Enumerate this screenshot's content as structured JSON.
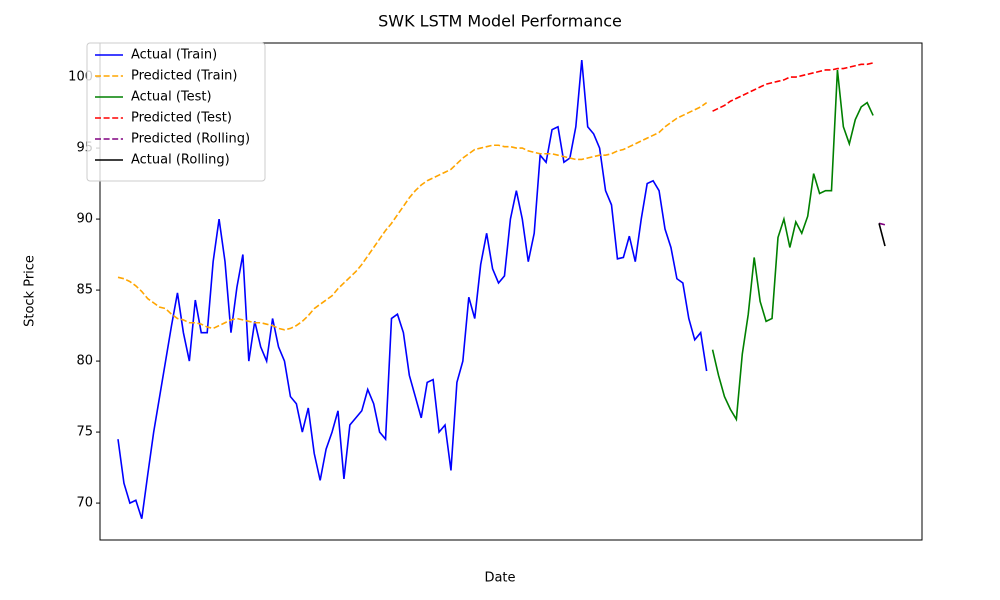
{
  "chart_data": {
    "type": "line",
    "title": "SWK LSTM Model Performance",
    "x_label": "Date",
    "y_label": "Stock Price",
    "ylim": [
      67.4,
      102.4
    ],
    "yticks": [
      70,
      75,
      80,
      85,
      90,
      95,
      100
    ],
    "grid": false,
    "legend": "upper left",
    "series": [
      {
        "name": "Actual (Train)",
        "color": "#0000ff",
        "linestyle": "solid",
        "values": [
          74.5,
          71.4,
          70.0,
          70.2,
          68.9,
          72.0,
          75.0,
          77.5,
          80.0,
          82.5,
          84.8,
          82,
          80,
          84.3,
          82,
          82,
          87,
          90,
          87,
          82,
          85.2,
          87.5,
          80,
          82.8,
          81,
          80,
          83,
          81,
          80,
          77.5,
          77,
          75,
          76.7,
          73.5,
          71.6,
          73.8,
          75,
          76.5,
          71.7,
          75.5,
          76,
          76.5,
          78,
          77,
          75,
          74.5,
          83,
          83.3,
          82,
          79,
          77.5,
          76,
          78.5,
          78.7,
          75,
          75.5,
          72.3,
          78.5,
          80,
          84.5,
          83,
          86.8,
          89,
          86.5,
          85.5,
          86,
          90,
          92,
          90,
          87,
          89,
          94.5,
          94,
          96.3,
          96.5,
          94,
          94.3,
          96.5,
          101.2,
          96.5,
          96,
          95,
          92,
          91,
          87.2,
          87.3,
          88.8,
          87,
          90,
          92.5,
          92.7,
          92,
          89.3,
          88,
          85.8,
          85.5,
          83,
          81.5,
          82,
          79.3,
          null,
          null,
          null,
          null,
          null,
          null,
          null,
          null,
          null,
          null,
          null,
          null,
          null,
          null,
          null,
          null,
          null,
          null,
          null,
          null,
          null,
          null,
          null,
          null,
          null,
          null,
          null,
          null,
          null,
          null
        ]
      },
      {
        "name": "Predicted (Train)",
        "color": "#ffa500",
        "linestyle": "dashed",
        "values": [
          85.9,
          85.8,
          85.6,
          85.3,
          84.9,
          84.4,
          84.1,
          83.8,
          83.7,
          83.3,
          83.0,
          82.9,
          82.7,
          82.7,
          82.6,
          82.4,
          82.3,
          82.5,
          82.7,
          82.9,
          83.0,
          82.9,
          82.8,
          82.7,
          82.7,
          82.6,
          82.5,
          82.3,
          82.2,
          82.3,
          82.5,
          82.8,
          83.2,
          83.7,
          84.0,
          84.3,
          84.6,
          85.1,
          85.5,
          85.9,
          86.3,
          86.8,
          87.4,
          88.0,
          88.6,
          89.2,
          89.7,
          90.3,
          90.9,
          91.5,
          92.0,
          92.4,
          92.7,
          92.9,
          93.1,
          93.3,
          93.5,
          93.9,
          94.3,
          94.6,
          94.9,
          95.0,
          95.1,
          95.2,
          95.2,
          95.1,
          95.1,
          95.0,
          95.0,
          94.8,
          94.7,
          94.6,
          94.6,
          94.6,
          94.5,
          94.4,
          94.3,
          94.2,
          94.2,
          94.3,
          94.4,
          94.5,
          94.5,
          94.6,
          94.8,
          94.9,
          95.1,
          95.3,
          95.5,
          95.7,
          95.9,
          96.1,
          96.5,
          96.8,
          97.1,
          97.3,
          97.5,
          97.7,
          97.9,
          98.2,
          null,
          null,
          null,
          null,
          null,
          null,
          null,
          null,
          null,
          null,
          null,
          null,
          null,
          null,
          null,
          null,
          null,
          null,
          null,
          null,
          null,
          null,
          null,
          null,
          null,
          null,
          null,
          null,
          null,
          null
        ]
      },
      {
        "name": "Actual (Test)",
        "color": "#008000",
        "linestyle": "solid",
        "values": [
          null,
          null,
          null,
          null,
          null,
          null,
          null,
          null,
          null,
          null,
          null,
          null,
          null,
          null,
          null,
          null,
          null,
          null,
          null,
          null,
          null,
          null,
          null,
          null,
          null,
          null,
          null,
          null,
          null,
          null,
          null,
          null,
          null,
          null,
          null,
          null,
          null,
          null,
          null,
          null,
          null,
          null,
          null,
          null,
          null,
          null,
          null,
          null,
          null,
          null,
          null,
          null,
          null,
          null,
          null,
          null,
          null,
          null,
          null,
          null,
          null,
          null,
          null,
          null,
          null,
          null,
          null,
          null,
          null,
          null,
          null,
          null,
          null,
          null,
          null,
          null,
          null,
          null,
          null,
          null,
          null,
          null,
          null,
          null,
          null,
          null,
          null,
          null,
          null,
          null,
          null,
          null,
          null,
          null,
          null,
          null,
          null,
          null,
          null,
          null,
          80.8,
          79,
          77.5,
          76.6,
          75.9,
          80.5,
          83.3,
          87.3,
          84.2,
          82.8,
          83,
          88.7,
          90,
          88,
          89.8,
          89,
          90.2,
          93.2,
          91.8,
          92,
          92,
          100.5,
          96.5,
          95.3,
          97,
          97.9,
          98.2,
          97.3,
          null,
          null
        ]
      },
      {
        "name": "Predicted (Test)",
        "color": "#ff0000",
        "linestyle": "dashed",
        "values": [
          null,
          null,
          null,
          null,
          null,
          null,
          null,
          null,
          null,
          null,
          null,
          null,
          null,
          null,
          null,
          null,
          null,
          null,
          null,
          null,
          null,
          null,
          null,
          null,
          null,
          null,
          null,
          null,
          null,
          null,
          null,
          null,
          null,
          null,
          null,
          null,
          null,
          null,
          null,
          null,
          null,
          null,
          null,
          null,
          null,
          null,
          null,
          null,
          null,
          null,
          null,
          null,
          null,
          null,
          null,
          null,
          null,
          null,
          null,
          null,
          null,
          null,
          null,
          null,
          null,
          null,
          null,
          null,
          null,
          null,
          null,
          null,
          null,
          null,
          null,
          null,
          null,
          null,
          null,
          null,
          null,
          null,
          null,
          null,
          null,
          null,
          null,
          null,
          null,
          null,
          null,
          null,
          null,
          null,
          null,
          null,
          null,
          null,
          null,
          null,
          97.6,
          97.8,
          98.0,
          98.3,
          98.5,
          98.7,
          98.9,
          99.1,
          99.3,
          99.5,
          99.6,
          99.7,
          99.8,
          100.0,
          100.0,
          100.1,
          100.2,
          100.3,
          100.4,
          100.5,
          100.5,
          100.6,
          100.6,
          100.7,
          100.8,
          100.9,
          100.9,
          101.0,
          null,
          null
        ]
      },
      {
        "name": "Predicted (Rolling)",
        "color": "#800080",
        "linestyle": "dashed",
        "values": [
          null,
          null,
          null,
          null,
          null,
          null,
          null,
          null,
          null,
          null,
          null,
          null,
          null,
          null,
          null,
          null,
          null,
          null,
          null,
          null,
          null,
          null,
          null,
          null,
          null,
          null,
          null,
          null,
          null,
          null,
          null,
          null,
          null,
          null,
          null,
          null,
          null,
          null,
          null,
          null,
          null,
          null,
          null,
          null,
          null,
          null,
          null,
          null,
          null,
          null,
          null,
          null,
          null,
          null,
          null,
          null,
          null,
          null,
          null,
          null,
          null,
          null,
          null,
          null,
          null,
          null,
          null,
          null,
          null,
          null,
          null,
          null,
          null,
          null,
          null,
          null,
          null,
          null,
          null,
          null,
          null,
          null,
          null,
          null,
          null,
          null,
          null,
          null,
          null,
          null,
          null,
          null,
          null,
          null,
          null,
          null,
          null,
          null,
          null,
          null,
          null,
          null,
          null,
          null,
          null,
          null,
          null,
          null,
          null,
          null,
          null,
          null,
          null,
          null,
          null,
          null,
          null,
          null,
          null,
          null,
          null,
          null,
          null,
          null,
          null,
          null,
          null,
          null,
          89.7,
          89.6
        ]
      },
      {
        "name": "Actual (Rolling)",
        "color": "#000000",
        "linestyle": "solid",
        "values": [
          null,
          null,
          null,
          null,
          null,
          null,
          null,
          null,
          null,
          null,
          null,
          null,
          null,
          null,
          null,
          null,
          null,
          null,
          null,
          null,
          null,
          null,
          null,
          null,
          null,
          null,
          null,
          null,
          null,
          null,
          null,
          null,
          null,
          null,
          null,
          null,
          null,
          null,
          null,
          null,
          null,
          null,
          null,
          null,
          null,
          null,
          null,
          null,
          null,
          null,
          null,
          null,
          null,
          null,
          null,
          null,
          null,
          null,
          null,
          null,
          null,
          null,
          null,
          null,
          null,
          null,
          null,
          null,
          null,
          null,
          null,
          null,
          null,
          null,
          null,
          null,
          null,
          null,
          null,
          null,
          null,
          null,
          null,
          null,
          null,
          null,
          null,
          null,
          null,
          null,
          null,
          null,
          null,
          null,
          null,
          null,
          null,
          null,
          null,
          null,
          null,
          null,
          null,
          null,
          null,
          null,
          null,
          null,
          null,
          null,
          null,
          null,
          null,
          null,
          null,
          null,
          null,
          null,
          null,
          null,
          null,
          null,
          null,
          null,
          null,
          null,
          null,
          null,
          89.7,
          88.1
        ]
      }
    ]
  }
}
